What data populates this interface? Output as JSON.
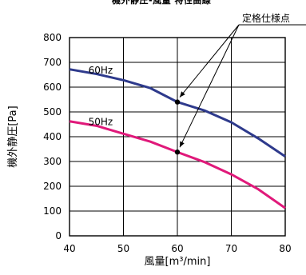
{
  "title_fragment": "機外静圧-風量 特性曲線",
  "annotation_label": "定格仕様点",
  "colors": {
    "series_60hz": "#2e3a8c",
    "series_50hz": "#e0197a",
    "grid": "#000000"
  },
  "chart_data": {
    "type": "line",
    "xlabel": "風量[m³/min]",
    "ylabel": "機外静圧[Pa]",
    "xlim": [
      40,
      80
    ],
    "ylim": [
      0,
      800
    ],
    "x_ticks": [
      "40",
      "50",
      "60",
      "70",
      "80"
    ],
    "y_ticks": [
      "0",
      "100",
      "200",
      "300",
      "400",
      "500",
      "600",
      "700",
      "800"
    ],
    "grid": true,
    "series": [
      {
        "name": "60Hz",
        "x": [
          40,
          45,
          50,
          55,
          60,
          65,
          70,
          75,
          80
        ],
        "y": [
          672,
          653,
          628,
          596,
          540,
          506,
          458,
          393,
          320
        ]
      },
      {
        "name": "50Hz",
        "x": [
          40,
          45,
          50,
          55,
          60,
          65,
          70,
          75,
          80
        ],
        "y": [
          462,
          444,
          412,
          380,
          338,
          298,
          248,
          188,
          112
        ]
      }
    ],
    "rated_points": [
      {
        "x": 60,
        "y": 540
      },
      {
        "x": 60,
        "y": 338
      }
    ]
  }
}
